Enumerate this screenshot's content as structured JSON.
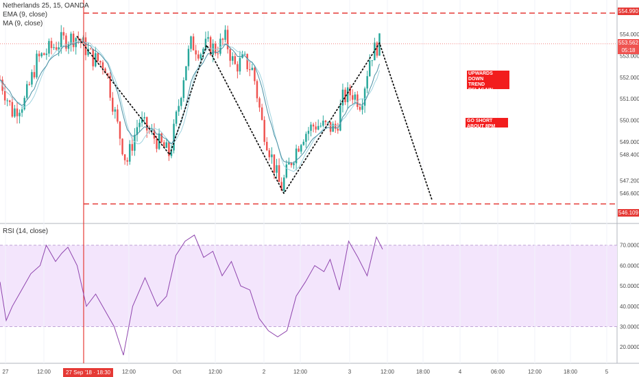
{
  "legend": {
    "symbol": "Netherlands 25, 15, OANDA",
    "ema": "EMA (9, close)",
    "ma": "MA (9, close)",
    "rsi": "RSI (14, close)"
  },
  "notes": {
    "note_a": "UPWARDS DOWN\nTREND\nRSI AGAIN\nOVERSOLD",
    "note_b": "GO SHORT\nABOUT 8PM"
  },
  "price_labels": {
    "top": "554.990",
    "bottom": "546.109",
    "last": "553.562",
    "timer": "05:18"
  },
  "time_label": "27 Sep '18 · 18:30",
  "colors": {
    "up": "#26a69a",
    "down": "#ef5350",
    "ema": "#4a90a4",
    "ma": "#9fd3df",
    "rsi": "#8e44ad",
    "rsi_band": "#f3e5fc",
    "level": "#e53935"
  },
  "chart_data": [
    {
      "type": "candlestick",
      "title": "Netherlands 25, 15, OANDA",
      "ylim": [
        545.2,
        555.6
      ],
      "y_ticks": [
        "554.000",
        "553.000",
        "552.000",
        "551.000",
        "550.000",
        "549.000",
        "548.400",
        "547.200",
        "546.600"
      ],
      "x_ticks": [
        "27",
        "12:00",
        "12:00",
        "Oct",
        "12:00",
        "2",
        "12:00",
        "3",
        "12:00",
        "18:00",
        "4",
        "06:00",
        "12:00",
        "18:00",
        "5"
      ],
      "levels": [
        554.99,
        546.109
      ],
      "last_price": 553.562,
      "zigzag": [
        {
          "t": 0.125,
          "v": 553.9
        },
        {
          "t": 0.275,
          "v": 548.4
        },
        {
          "t": 0.335,
          "v": 553.5
        },
        {
          "t": 0.46,
          "v": 546.6
        },
        {
          "t": 0.615,
          "v": 553.6
        },
        {
          "t": 0.7,
          "v": 546.3
        }
      ],
      "waypoints": [
        [
          0.0,
          551.9
        ],
        [
          0.02,
          550.4
        ],
        [
          0.04,
          550.9
        ],
        [
          0.06,
          552.8
        ],
        [
          0.08,
          553.3
        ],
        [
          0.1,
          553.7
        ],
        [
          0.125,
          553.9
        ],
        [
          0.15,
          552.9
        ],
        [
          0.17,
          552.6
        ],
        [
          0.19,
          549.8
        ],
        [
          0.205,
          548.0
        ],
        [
          0.225,
          550.0
        ],
        [
          0.25,
          549.2
        ],
        [
          0.275,
          548.4
        ],
        [
          0.29,
          550.8
        ],
        [
          0.3,
          552.5
        ],
        [
          0.31,
          553.6
        ],
        [
          0.325,
          553.2
        ],
        [
          0.335,
          553.5
        ],
        [
          0.35,
          553.3
        ],
        [
          0.365,
          553.8
        ],
        [
          0.38,
          552.5
        ],
        [
          0.395,
          552.8
        ],
        [
          0.41,
          552.3
        ],
        [
          0.425,
          549.8
        ],
        [
          0.44,
          548.3
        ],
        [
          0.455,
          546.8
        ],
        [
          0.47,
          548.0
        ],
        [
          0.49,
          549.3
        ],
        [
          0.51,
          549.8
        ],
        [
          0.53,
          549.7
        ],
        [
          0.545,
          549.6
        ],
        [
          0.555,
          551.0
        ],
        [
          0.57,
          551.3
        ],
        [
          0.585,
          550.8
        ],
        [
          0.6,
          553.0
        ],
        [
          0.615,
          553.6
        ]
      ]
    },
    {
      "type": "line",
      "title": "RSI (14, close)",
      "ylim": [
        12,
        80
      ],
      "y_ticks": [
        "70.0000",
        "60.0000",
        "50.0000",
        "40.0000",
        "30.0000",
        "20.0000"
      ],
      "band": [
        30,
        70
      ],
      "rsi": [
        [
          0.0,
          52
        ],
        [
          0.01,
          33
        ],
        [
          0.02,
          40
        ],
        [
          0.035,
          48
        ],
        [
          0.05,
          56
        ],
        [
          0.065,
          60
        ],
        [
          0.075,
          70
        ],
        [
          0.09,
          62
        ],
        [
          0.1,
          66
        ],
        [
          0.11,
          69
        ],
        [
          0.125,
          60
        ],
        [
          0.14,
          40
        ],
        [
          0.155,
          46
        ],
        [
          0.17,
          38
        ],
        [
          0.185,
          30
        ],
        [
          0.2,
          16
        ],
        [
          0.215,
          40
        ],
        [
          0.235,
          54
        ],
        [
          0.255,
          40
        ],
        [
          0.27,
          45
        ],
        [
          0.285,
          65
        ],
        [
          0.3,
          72
        ],
        [
          0.315,
          75
        ],
        [
          0.33,
          64
        ],
        [
          0.345,
          67
        ],
        [
          0.36,
          55
        ],
        [
          0.375,
          62
        ],
        [
          0.39,
          50
        ],
        [
          0.405,
          48
        ],
        [
          0.42,
          34
        ],
        [
          0.435,
          28
        ],
        [
          0.45,
          25
        ],
        [
          0.465,
          28
        ],
        [
          0.48,
          45
        ],
        [
          0.495,
          52
        ],
        [
          0.51,
          60
        ],
        [
          0.525,
          57
        ],
        [
          0.535,
          63
        ],
        [
          0.55,
          48
        ],
        [
          0.565,
          72
        ],
        [
          0.58,
          64
        ],
        [
          0.595,
          55
        ],
        [
          0.61,
          74
        ],
        [
          0.62,
          68
        ]
      ]
    }
  ]
}
